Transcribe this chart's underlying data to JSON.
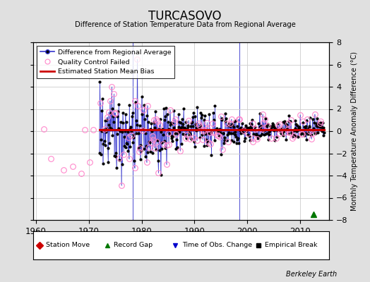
{
  "title": "TURCASOVO",
  "subtitle": "Difference of Station Temperature Data from Regional Average",
  "ylabel": "Monthly Temperature Anomaly Difference (°C)",
  "xlabel_years": [
    1960,
    1970,
    1980,
    1990,
    2000,
    2010
  ],
  "ylim": [
    -8,
    8
  ],
  "xlim": [
    1959.5,
    2015.5
  ],
  "background_color": "#e0e0e0",
  "plot_background": "#ffffff",
  "line_color": "#3333cc",
  "marker_color": "#000000",
  "qc_color": "#ff88cc",
  "bias_color": "#cc0000",
  "grid_color": "#cccccc",
  "station_move_color": "#cc0000",
  "record_gap_color": "#007700",
  "tobs_color": "#0000cc",
  "empirical_color": "#000000",
  "watermark": "Berkeley Earth",
  "seed": 42,
  "bias_level": 0.1,
  "station_moves": [],
  "record_gaps": [
    2012.5
  ],
  "tobs_changes": [
    1978.3,
    1998.5
  ],
  "empirical_breaks": []
}
